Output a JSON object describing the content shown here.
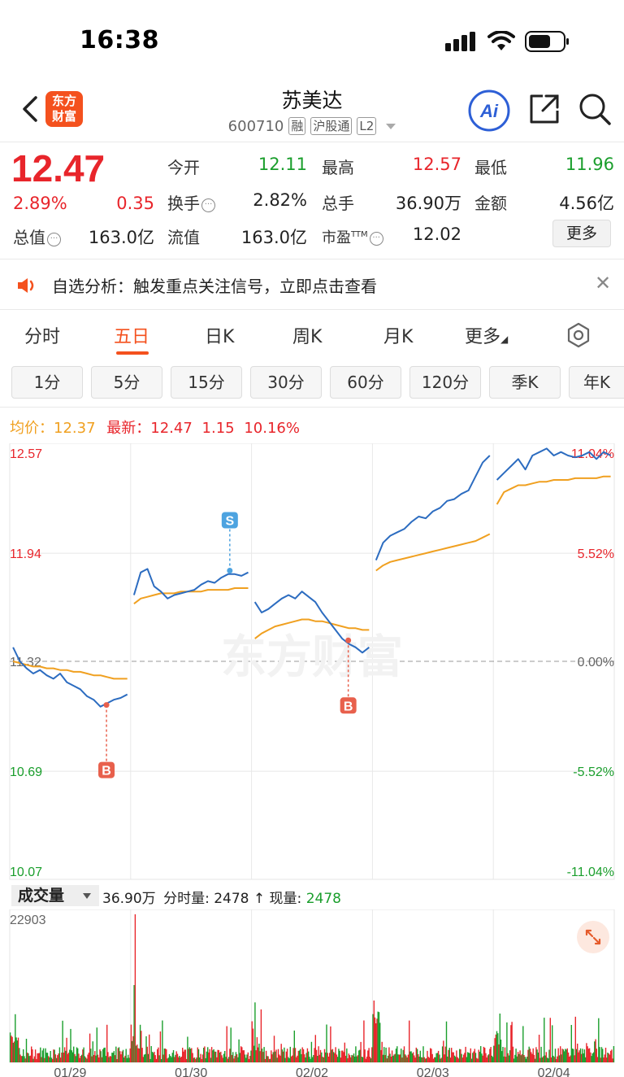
{
  "status_bar": {
    "time": "16:38"
  },
  "nav": {
    "logo_line1": "东方",
    "logo_line2": "财富",
    "stock_name": "苏美达",
    "stock_code": "600710",
    "tag_margin": "融",
    "tag_connect": "沪股通",
    "tag_level": "L2",
    "ai_label": "Ai"
  },
  "quote": {
    "price": "12.47",
    "change_pct": "2.89%",
    "change": "0.35",
    "open_label": "今开",
    "open": "12.11",
    "high_label": "最高",
    "high": "12.57",
    "low_label": "最低",
    "low": "11.96",
    "turnover_label": "换手",
    "turnover": "2.82%",
    "volume_label": "总手",
    "volume": "36.90万",
    "amount_label": "金额",
    "amount": "4.56亿",
    "mktcap_label": "总值",
    "mktcap": "163.0亿",
    "float_label": "流值",
    "float": "163.0亿",
    "pe_label": "市盈",
    "pe_sup": "TTM",
    "pe": "12.02",
    "more": "更多"
  },
  "notice": {
    "text": "自选分析：触发重点关注信号，立即点击查看"
  },
  "period_tabs": [
    "分时",
    "五日",
    "日K",
    "周K",
    "月K",
    "更多"
  ],
  "active_period": 1,
  "minute_tabs": [
    "1分",
    "5分",
    "15分",
    "30分",
    "60分",
    "120分",
    "季K",
    "年K"
  ],
  "legend": {
    "avg_label": "均价：",
    "avg": "12.37",
    "latest_label": "最新：",
    "latest": "12.47",
    "latest_chg": "1.15",
    "latest_pct": "10.16%"
  },
  "watermark": "东方财富",
  "colors": {
    "up": "#e8252b",
    "down": "#1a9e2c",
    "price_line": "#2c6cc0",
    "avg_line": "#f0a020",
    "accent": "#f4511e"
  },
  "chart_data": {
    "type": "line",
    "days": [
      "01/29",
      "01/30",
      "02/02",
      "02/03",
      "02/04"
    ],
    "y_left_ticks": [
      "12.57",
      "11.94",
      "11.32",
      "10.69",
      "10.07"
    ],
    "y_right_ticks": [
      "11.04%",
      "5.52%",
      "0.00%",
      "-5.52%",
      "-11.04%"
    ],
    "ylim": [
      10.07,
      12.57
    ],
    "prev_close": 11.32,
    "series": [
      {
        "values": [
          11.4,
          11.32,
          11.28,
          11.25,
          11.27,
          11.24,
          11.22,
          11.25,
          11.2,
          11.18,
          11.16,
          11.12,
          11.1,
          11.06,
          11.08,
          11.1,
          11.11,
          11.13,
          11.7,
          11.83,
          11.85,
          11.75,
          11.72,
          11.68,
          11.7,
          11.71,
          11.72,
          11.73,
          11.76,
          11.78,
          11.77,
          11.8,
          11.82,
          11.82,
          11.81,
          11.83,
          11.66,
          11.6,
          11.62,
          11.65,
          11.68,
          11.7,
          11.68,
          11.72,
          11.69,
          11.66,
          11.6,
          11.55,
          11.5,
          11.45,
          11.42,
          11.4,
          11.37,
          11.4,
          11.9,
          12.0,
          12.04,
          12.06,
          12.08,
          12.12,
          12.15,
          12.14,
          12.18,
          12.2,
          12.24,
          12.25,
          12.28,
          12.3,
          12.38,
          12.46,
          12.5,
          12.36,
          12.4,
          12.44,
          12.48,
          12.42,
          12.5,
          12.52,
          12.54,
          12.5,
          12.52,
          12.5,
          12.49,
          12.5,
          12.52,
          12.48,
          12.52,
          12.5
        ]
      },
      {
        "values": [
          11.32,
          11.31,
          11.3,
          11.29,
          11.29,
          11.28,
          11.28,
          11.27,
          11.27,
          11.26,
          11.26,
          11.25,
          11.24,
          11.24,
          11.23,
          11.22,
          11.22,
          11.22,
          11.65,
          11.68,
          11.69,
          11.7,
          11.71,
          11.71,
          11.71,
          11.72,
          11.72,
          11.72,
          11.72,
          11.73,
          11.73,
          11.73,
          11.73,
          11.74,
          11.74,
          11.74,
          11.45,
          11.48,
          11.5,
          11.52,
          11.53,
          11.54,
          11.55,
          11.56,
          11.56,
          11.55,
          11.55,
          11.54,
          11.53,
          11.52,
          11.51,
          11.51,
          11.5,
          11.5,
          11.84,
          11.87,
          11.89,
          11.9,
          11.91,
          11.92,
          11.93,
          11.94,
          11.95,
          11.96,
          11.97,
          11.98,
          11.99,
          12.0,
          12.01,
          12.03,
          12.05,
          12.22,
          12.29,
          12.31,
          12.33,
          12.33,
          12.34,
          12.35,
          12.35,
          12.36,
          12.36,
          12.36,
          12.37,
          12.37,
          12.37,
          12.37,
          12.38,
          12.38
        ]
      }
    ],
    "signals": [
      {
        "label": "B",
        "day": "01/29",
        "price": 11.07
      },
      {
        "label": "S",
        "day": "01/30",
        "price": 11.84
      },
      {
        "label": "B",
        "day": "02/02",
        "price": 11.44
      }
    ]
  },
  "volume": {
    "selector": "成交量",
    "total": "36.90万",
    "period_label": "分时量:",
    "period_value": "2478",
    "current_label": "现量:",
    "current_value": "2478",
    "max_label": "22903",
    "max": 22903
  }
}
